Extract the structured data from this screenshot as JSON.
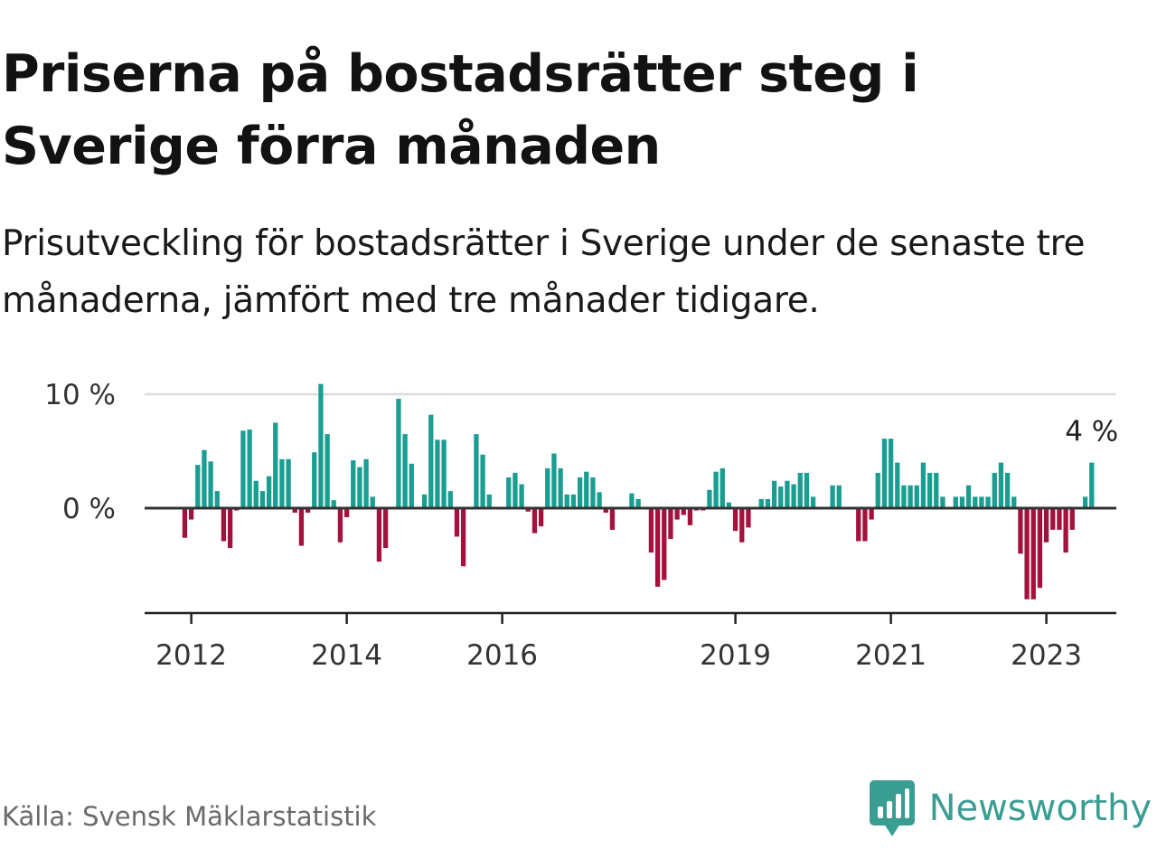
{
  "title": "Priserna på bostadsrätter steg i Sverige förra månaden",
  "subtitle": "Prisutveckling för bostadsrätter i Sverige under de senaste tre månaderna, jämfört med tre månader tidigare.",
  "source": "Källa: Svensk Mäklarstatistik",
  "brand": {
    "name": "Newsworthy",
    "icon": "bar-chart-speech-bubble-icon",
    "color": "#3a9d92"
  },
  "colors": {
    "positive": "#1a9e92",
    "negative": "#a3123d",
    "grid": "#dddddd",
    "baseline": "#333333",
    "axis": "#222222"
  },
  "chart_data": {
    "type": "bar",
    "title": "",
    "xlabel": "",
    "ylabel": "",
    "ylim": [
      -9,
      10
    ],
    "y_ticks": [
      {
        "value": 10,
        "label": "10 %"
      },
      {
        "value": 0,
        "label": "0 %"
      }
    ],
    "x_ticks": [
      {
        "value": 2012.0,
        "label": "2012"
      },
      {
        "value": 2014.0,
        "label": "2014"
      },
      {
        "value": 2016.0,
        "label": "2016"
      },
      {
        "value": 2019.0,
        "label": "2019"
      },
      {
        "value": 2021.0,
        "label": "2021"
      },
      {
        "value": 2023.0,
        "label": "2023"
      }
    ],
    "xlim": [
      2011.4,
      2023.9
    ],
    "start": {
      "year": 2011,
      "month": 12
    },
    "values": [
      -2.6,
      -1.0,
      3.8,
      5.1,
      4.1,
      1.5,
      -2.9,
      -3.5,
      -0.2,
      6.8,
      6.9,
      2.4,
      1.5,
      2.8,
      7.5,
      4.3,
      4.3,
      -0.4,
      -3.3,
      -0.4,
      4.9,
      10.9,
      6.5,
      0.7,
      -3.0,
      -0.8,
      4.2,
      3.6,
      4.3,
      1.0,
      -4.7,
      -3.5,
      0,
      9.6,
      6.5,
      3.9,
      0,
      1.2,
      8.2,
      6.0,
      6.0,
      1.5,
      -2.5,
      -5.1,
      0,
      6.5,
      4.7,
      1.2,
      0,
      0,
      2.7,
      3.1,
      2.1,
      -0.3,
      -2.2,
      -1.6,
      3.5,
      4.8,
      3.5,
      1.2,
      1.2,
      2.7,
      3.2,
      2.7,
      1.4,
      -0.4,
      -1.9,
      0,
      0,
      1.3,
      0.8,
      0,
      -3.9,
      -6.9,
      -6.3,
      -2.7,
      -1.0,
      -0.6,
      -1.5,
      -0.2,
      -0.2,
      1.6,
      3.2,
      3.5,
      0.5,
      -2.0,
      -3.0,
      -1.7,
      0,
      0.8,
      0.8,
      2.4,
      1.9,
      2.4,
      2.1,
      3.1,
      3.1,
      1.0,
      0,
      0,
      2.0,
      2.0,
      0,
      0,
      -2.9,
      -2.9,
      -1.0,
      3.1,
      6.1,
      6.1,
      4.0,
      2.0,
      2.0,
      2.0,
      4.0,
      3.1,
      3.1,
      1.0,
      0,
      1.0,
      1.0,
      2.0,
      1.0,
      1.0,
      1.0,
      3.1,
      4.0,
      3.1,
      1.0,
      -4.0,
      -8.0,
      -8.0,
      -7.0,
      -3.0,
      -1.9,
      -1.9,
      -3.9,
      -1.9,
      0,
      1.0,
      4.0
    ],
    "annotation": {
      "label": "4 %",
      "value": 4.0
    }
  }
}
